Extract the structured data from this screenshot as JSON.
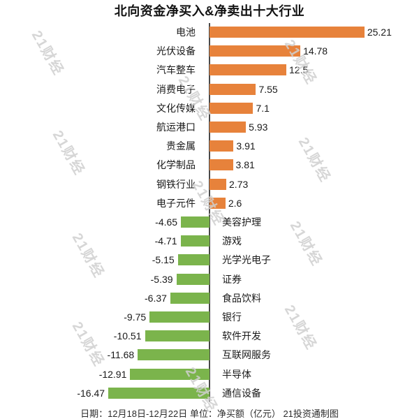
{
  "title": "北向资金净买入&净卖出十大行业",
  "footer": "日期：12月18日-12月22日 单位：净买额（亿元） 21投资通制图",
  "watermark": {
    "text": "21财经"
  },
  "colors": {
    "positive_bar": "#E7823B",
    "negative_bar": "#7BB44C",
    "axis_line": "#4A4A4A",
    "title_text": "#121212",
    "label_text": "#1A1A1A",
    "footer_text": "#2B2B2B",
    "watermark_text": "#D0D0D0",
    "background": "#FFFFFF"
  },
  "chart_data": {
    "type": "bar",
    "orientation": "horizontal",
    "title": "北向资金净买入&净卖出十大行业",
    "unit": "净买额（亿元）",
    "date_range": "12月18日-12月22日",
    "source": "21投资通制图",
    "categories": [
      "电池",
      "光伏设备",
      "汽车整车",
      "消费电子",
      "文化传媒",
      "航运港口",
      "贵金属",
      "化学制品",
      "钢铁行业",
      "电子元件",
      "美容护理",
      "游戏",
      "光学光电子",
      "证券",
      "食品饮料",
      "银行",
      "软件开发",
      "互联网服务",
      "半导体",
      "通信设备"
    ],
    "values": [
      25.21,
      14.78,
      12.5,
      7.55,
      7.1,
      5.93,
      3.91,
      3.81,
      2.73,
      2.6,
      -4.65,
      -4.71,
      -5.15,
      -5.39,
      -6.37,
      -9.75,
      -10.51,
      -11.68,
      -12.91,
      -16.47
    ],
    "value_labels": [
      "25.21",
      "14.78",
      "12.5",
      "7.55",
      "7.1",
      "5.93",
      "3.91",
      "3.81",
      "2.73",
      "2.6",
      "-4.65",
      "-4.71",
      "-5.15",
      "-5.39",
      "-6.37",
      "-9.75",
      "-10.51",
      "-11.68",
      "-12.91",
      "-16.47"
    ],
    "xlim": [
      -16.47,
      25.21
    ],
    "zero_line": true,
    "legend": false,
    "grid": false
  }
}
